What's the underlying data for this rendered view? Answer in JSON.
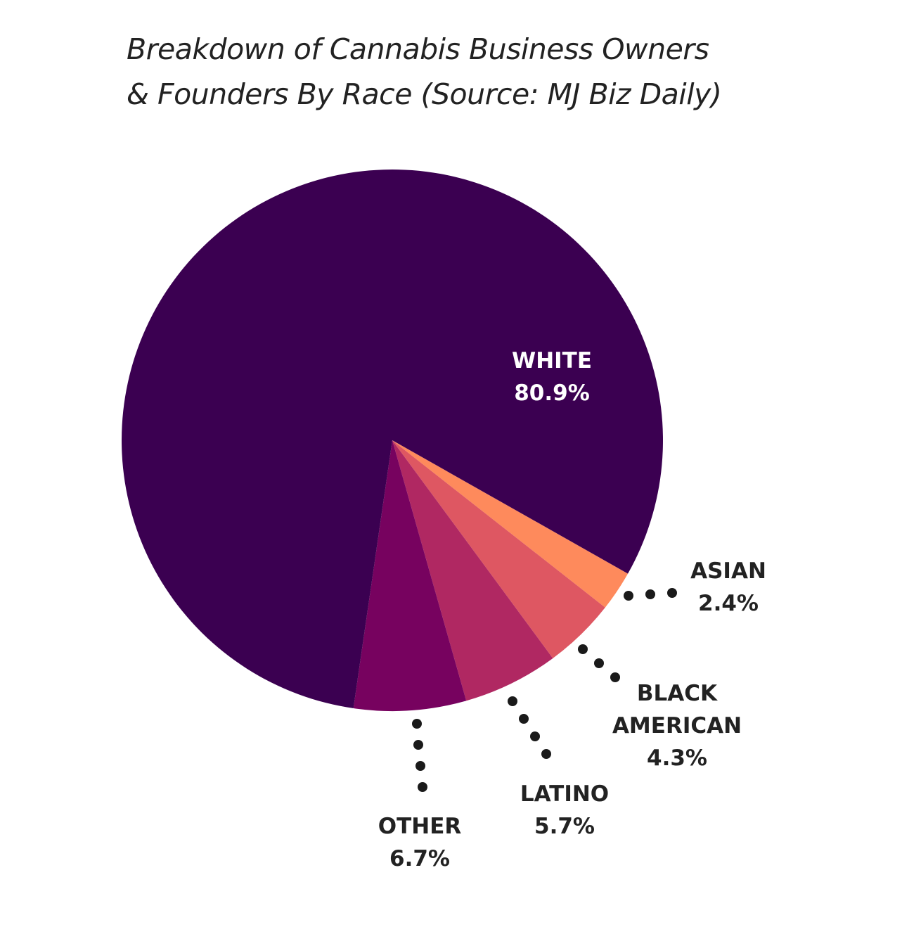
{
  "title_lines": [
    "Breakdown of Cannabis Business Owners",
    "& Founders By Race (Source: MJ Biz Daily)"
  ],
  "chart_data": {
    "type": "pie",
    "title": "Breakdown of Cannabis Business Owners & Founders By Race (Source: MJ Biz Daily)",
    "unit": "%",
    "slices": [
      {
        "label": [
          "WHITE"
        ],
        "value_text": "80.9%",
        "value": 80.9,
        "color": "#3b0051",
        "label_color": "#ffffff"
      },
      {
        "label": [
          "ASIAN"
        ],
        "value_text": "2.4%",
        "value": 2.4,
        "color": "#fe8a5c",
        "label_color": "#222222"
      },
      {
        "label": [
          "BLACK",
          "AMERICAN"
        ],
        "value_text": "4.3%",
        "value": 4.3,
        "color": "#de5762",
        "label_color": "#222222"
      },
      {
        "label": [
          "LATINO"
        ],
        "value_text": "5.7%",
        "value": 5.7,
        "color": "#b02862",
        "label_color": "#222222"
      },
      {
        "label": [
          "OTHER"
        ],
        "value_text": "6.7%",
        "value": 6.7,
        "color": "#77025f",
        "label_color": "#222222"
      }
    ],
    "leader_style": "dotted",
    "dot_color": "#1a1a1a"
  }
}
